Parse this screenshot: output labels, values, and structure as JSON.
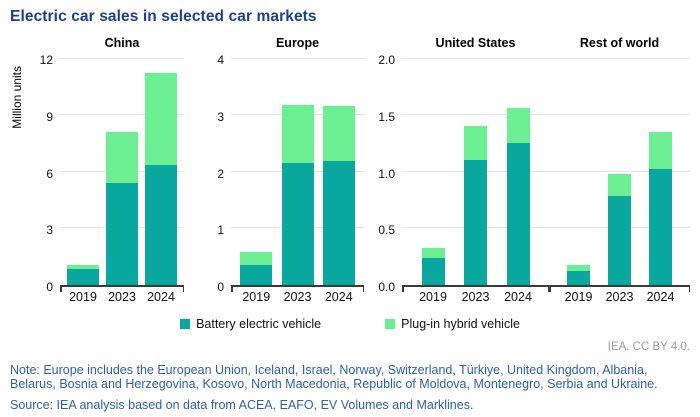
{
  "header": {
    "title": "Electric car sales in selected car markets"
  },
  "chart_data": {
    "type": "bar",
    "stacked": true,
    "title": "Electric car sales in selected car markets",
    "ylabel": "Million units",
    "categories": [
      "2019",
      "2023",
      "2024"
    ],
    "legend": [
      {
        "label": "Battery electric vehicle",
        "color": "#0aa79e"
      },
      {
        "label": "Plug-in hybrid vehicle",
        "color": "#6cee92"
      }
    ],
    "grid": true,
    "legend_position": "bottom",
    "panels": [
      {
        "title": "China",
        "ymax": 12,
        "yticks": [
          0,
          3,
          6,
          9,
          12
        ],
        "tick_format": "int",
        "series": [
          {
            "name": "Battery electric vehicle",
            "values": [
              0.83,
              5.4,
              6.35
            ]
          },
          {
            "name": "Plug-in hybrid vehicle",
            "values": [
              0.23,
              2.7,
              4.85
            ]
          }
        ]
      },
      {
        "title": "Europe",
        "ymax": 4,
        "yticks": [
          0,
          1,
          2,
          3,
          4
        ],
        "tick_format": "int",
        "series": [
          {
            "name": "Battery electric vehicle",
            "values": [
              0.36,
              2.15,
              2.18
            ]
          },
          {
            "name": "Plug-in hybrid vehicle",
            "values": [
              0.22,
              1.02,
              0.97
            ]
          }
        ]
      },
      {
        "title": "United States",
        "ymax": 2,
        "yticks": [
          0,
          0.5,
          1,
          1.5,
          2
        ],
        "tick_format": "1dp",
        "series": [
          {
            "name": "Battery electric vehicle",
            "values": [
              0.24,
              1.1,
              1.25
            ]
          },
          {
            "name": "Plug-in hybrid vehicle",
            "values": [
              0.09,
              0.3,
              0.31
            ]
          }
        ]
      },
      {
        "title": "Rest of world",
        "ymax": 2,
        "yticks": [],
        "gridlines": [
          0.5,
          1,
          1.5,
          2
        ],
        "tick_format": "1dp",
        "joined_with_previous": true,
        "series": [
          {
            "name": "Battery electric vehicle",
            "values": [
              0.12,
              0.78,
              1.02
            ]
          },
          {
            "name": "Plug-in hybrid vehicle",
            "values": [
              0.06,
              0.2,
              0.33
            ]
          }
        ]
      }
    ]
  },
  "footer": {
    "attribution": "IEA. CC BY 4.0.",
    "note": "Note: Europe includes the European Union, Iceland, Israel, Norway, Switzerland, Türkiye, United Kingdom, Albania, Belarus, Bosnia and Herzegovina, Kosovo, North Macedonia, Republic of Moldova, Montenegro, Serbia and Ukraine.",
    "source": "Source: IEA analysis based on data from ACEA, EAFO, EV Volumes and Marklines."
  },
  "colors": {
    "title_blue": "#1c3e94",
    "note_blue": "#2e5fae",
    "attribution_gray": "#9a9a9a",
    "battery_electric_teal": "#0aa79e",
    "plug_in_hybrid_green": "#6cee92",
    "gridline_gray": "#e4e4e4",
    "axis_dark": "#3a3a3a"
  }
}
